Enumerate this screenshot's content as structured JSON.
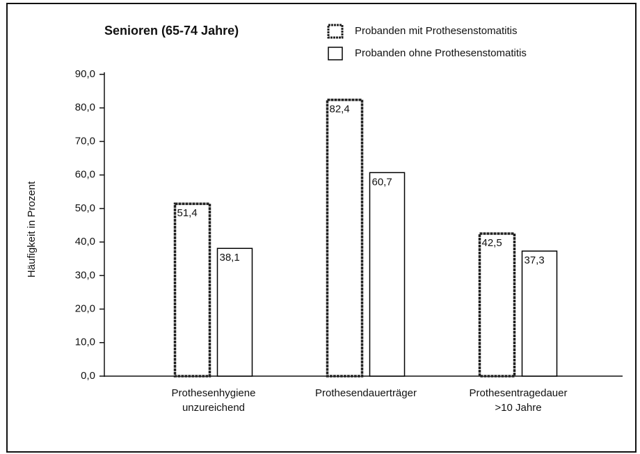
{
  "chart_data": {
    "type": "bar",
    "title": "Senioren (65-74 Jahre)",
    "y_label": "Häufigkeit in Prozent",
    "categories": [
      "Prothesenhygiene\nunzureichend",
      "Prothesendauerträger",
      "Prothesentragedauer\n>10 Jahre"
    ],
    "series": [
      {
        "name": "Probanden mit Prothesenstomatitis",
        "color": "#222222",
        "values": [
          51.4,
          82.4,
          42.5
        ],
        "value_labels": [
          "51,4",
          "82,4",
          "42,5"
        ]
      },
      {
        "name": "Probanden ohne Prothesenstomatitis",
        "color": "#000000",
        "values": [
          38.1,
          60.7,
          37.3
        ],
        "value_labels": [
          "38,1",
          "60,7",
          "37,3"
        ]
      }
    ],
    "ylim": [
      0,
      90
    ],
    "yticks": [
      {
        "value": 0,
        "label": "0,0"
      },
      {
        "value": 10,
        "label": "10,0"
      },
      {
        "value": 20,
        "label": "20,0"
      },
      {
        "value": 30,
        "label": "30,0"
      },
      {
        "value": 40,
        "label": "40,0"
      },
      {
        "value": 50,
        "label": "50,0"
      },
      {
        "value": 60,
        "label": "60,0"
      },
      {
        "value": 70,
        "label": "70,0"
      },
      {
        "value": 80,
        "label": "80,0"
      },
      {
        "value": 90,
        "label": "90,0"
      }
    ]
  }
}
